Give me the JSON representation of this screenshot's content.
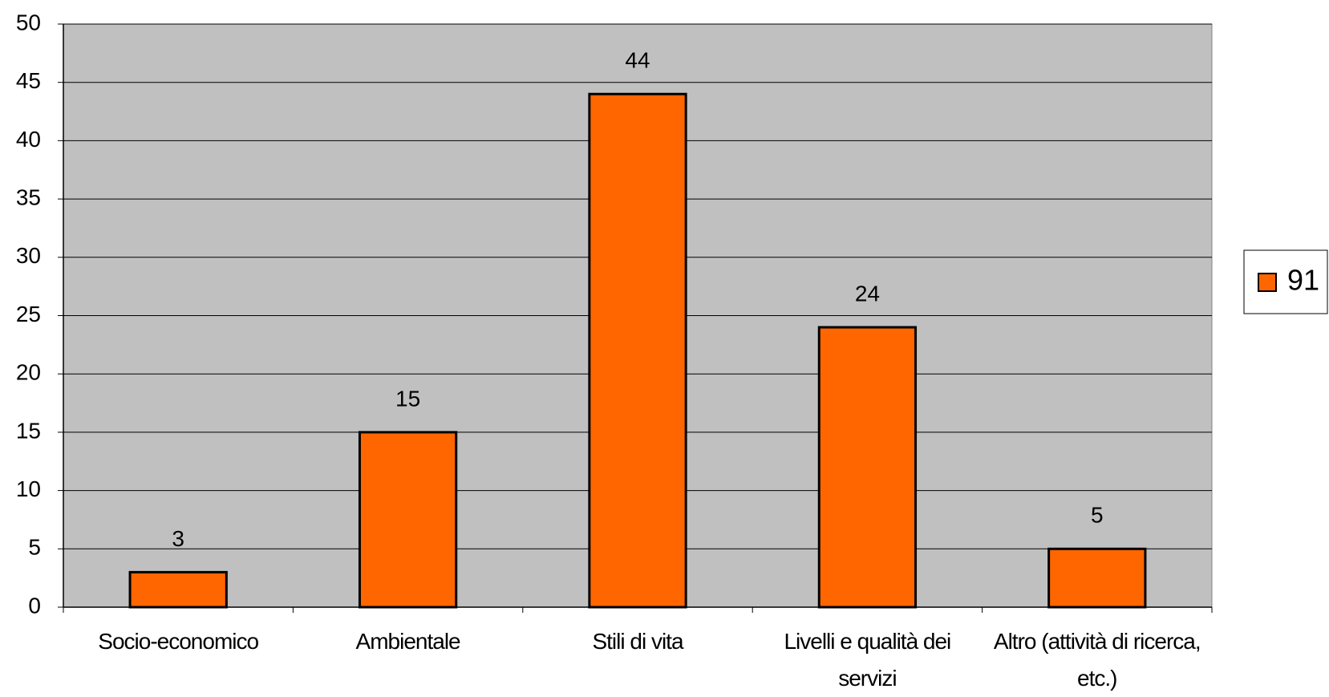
{
  "chart_data": {
    "type": "bar",
    "categories": [
      "Socio-economico",
      "Ambientale",
      "Stili di vita",
      "Livelli e qualità dei servizi",
      "Altro (attività di ricerca, etc.)"
    ],
    "series": [
      {
        "name": "91",
        "color": "#ff6600",
        "values": [
          3,
          15,
          44,
          24,
          5
        ]
      }
    ],
    "ylim": [
      0,
      50
    ],
    "yticks": [
      0,
      5,
      10,
      15,
      20,
      25,
      30,
      35,
      40,
      45,
      50
    ],
    "grid": true,
    "legend": "right"
  }
}
